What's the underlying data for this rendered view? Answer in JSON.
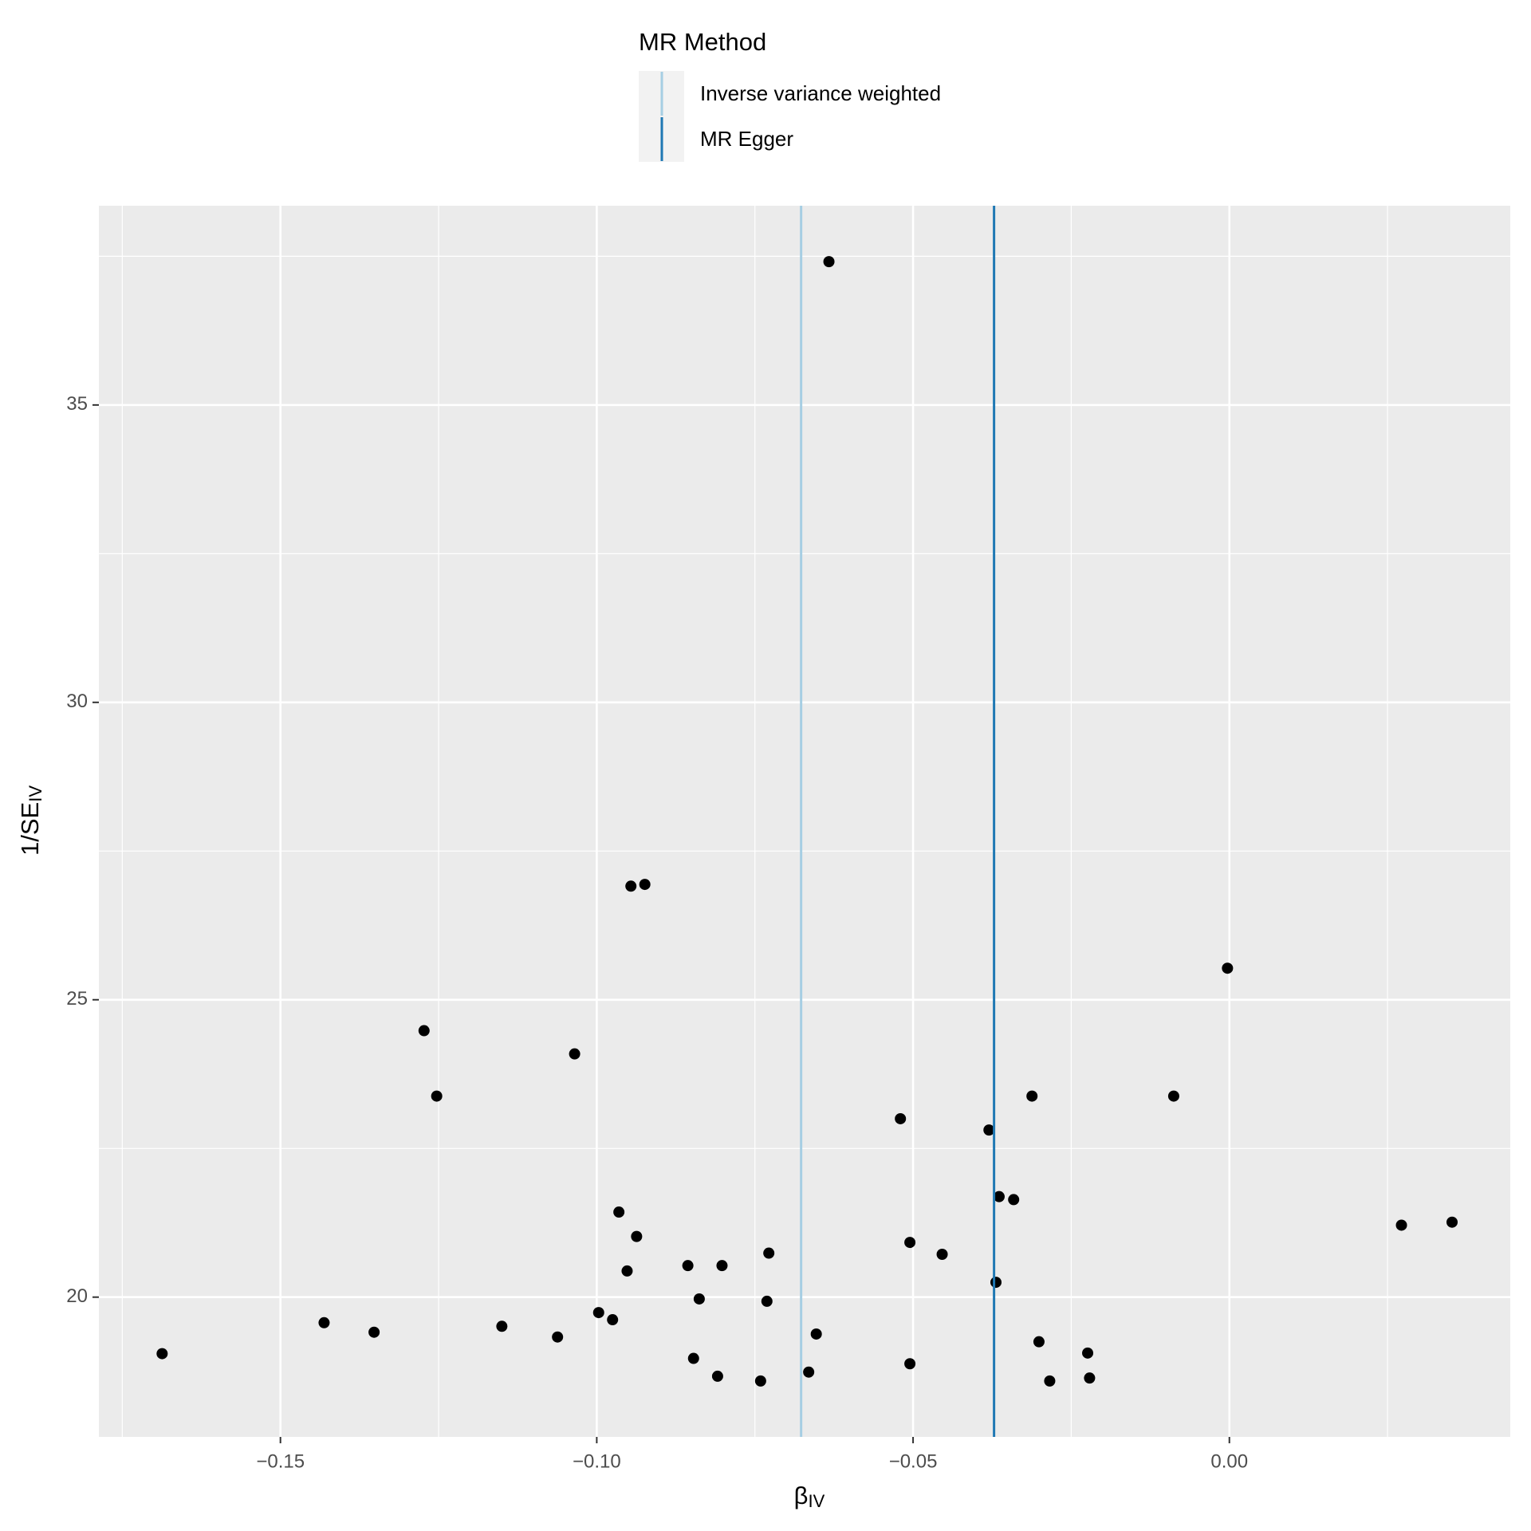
{
  "chart_data": {
    "type": "scatter",
    "x_label": "β",
    "x_label_sub": "IV",
    "y_label": "1/SE",
    "y_label_sub": "IV",
    "legend_title": "MR Method",
    "legend": "top",
    "grid": true,
    "color": "#000000",
    "lines": [
      {
        "name": "Inverse variance weighted",
        "color": "#a6cee3",
        "x": -0.0677
      },
      {
        "name": "MR Egger",
        "color": "#1f78b4",
        "x": -0.0372
      }
    ],
    "x": [
      -0.0633,
      -0.0946,
      -0.0924,
      -0.0003,
      -0.1273,
      -0.1035,
      -0.1253,
      -0.0312,
      -0.0088,
      -0.052,
      -0.038,
      -0.0364,
      -0.0341,
      -0.0965,
      -0.0937,
      0.0272,
      0.0352,
      -0.0728,
      -0.0505,
      -0.0454,
      -0.0856,
      -0.0802,
      -0.0952,
      -0.0369,
      -0.0838,
      -0.0731,
      -0.0997,
      -0.0975,
      -0.1431,
      -0.1352,
      -0.115,
      -0.1062,
      -0.0653,
      -0.0301,
      -0.1687,
      -0.0847,
      -0.0505,
      -0.0224,
      -0.0809,
      -0.0741,
      -0.0665,
      -0.0284,
      -0.0221
    ],
    "values": [
      37.41,
      26.91,
      26.94,
      25.53,
      24.48,
      24.09,
      23.38,
      23.38,
      23.38,
      23.0,
      22.81,
      21.69,
      21.64,
      21.43,
      21.02,
      21.21,
      21.26,
      20.74,
      20.92,
      20.72,
      20.53,
      20.53,
      20.44,
      20.25,
      19.97,
      19.93,
      19.74,
      19.62,
      19.57,
      19.41,
      19.51,
      19.33,
      19.38,
      19.25,
      19.05,
      18.97,
      18.88,
      19.06,
      18.67,
      18.59,
      18.74,
      18.59,
      18.64
    ],
    "xlim": [
      -0.1787,
      0.0444
    ],
    "ylim": [
      17.65,
      38.35
    ],
    "xticks": [
      {
        "value": -0.15,
        "label": "−0.15"
      },
      {
        "value": -0.1,
        "label": "−0.10"
      },
      {
        "value": -0.05,
        "label": "−0.05"
      },
      {
        "value": 0,
        "label": "0.00"
      }
    ],
    "yticks": [
      20,
      25,
      30,
      35
    ],
    "minor_xticks": [
      -0.175,
      -0.125,
      -0.075,
      -0.025,
      0.025
    ],
    "minor_yticks": [
      17.5,
      22.5,
      27.5,
      32.5,
      37.5
    ]
  }
}
